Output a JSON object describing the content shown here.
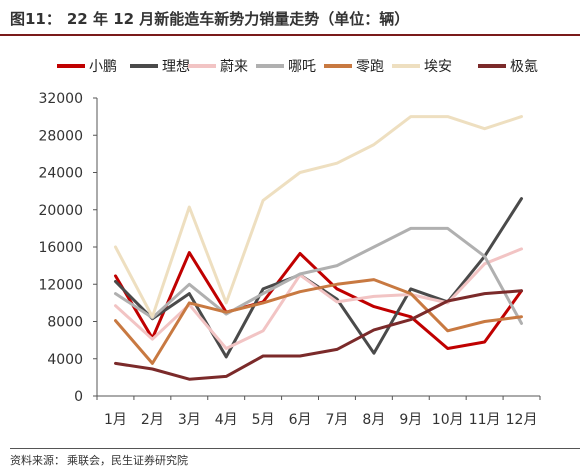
{
  "figure": {
    "label": "图11：",
    "title": "22 年 12 月新能造车新势力销量走势（单位：辆）"
  },
  "source": {
    "label": "资料来源：",
    "text": "乘联会，民生证券研究院"
  },
  "chart_data": {
    "type": "line",
    "title": "22 年 12 月新能造车新势力销量走势（单位：辆）",
    "xlabel": "",
    "ylabel": "",
    "ylim": [
      0,
      32000
    ],
    "yticks": [
      0,
      4000,
      8000,
      12000,
      16000,
      20000,
      24000,
      28000,
      32000
    ],
    "grid": false,
    "legend_position": "top",
    "categories": [
      "1月",
      "2月",
      "3月",
      "4月",
      "5月",
      "6月",
      "7月",
      "8月",
      "9月",
      "10月",
      "11月",
      "12月"
    ],
    "series": [
      {
        "name": "小鹏",
        "color": "#c00000",
        "values": [
          12900,
          6200,
          15400,
          9000,
          10100,
          15300,
          11500,
          9600,
          8500,
          5100,
          5800,
          11300
        ]
      },
      {
        "name": "理想",
        "color": "#4a4a4a",
        "values": [
          12300,
          8300,
          11000,
          4200,
          11500,
          13000,
          10400,
          4600,
          11500,
          10100,
          15000,
          21200
        ]
      },
      {
        "name": "蔚来",
        "color": "#f2c4c4",
        "values": [
          9700,
          6100,
          9800,
          5100,
          7000,
          13000,
          10100,
          10700,
          10900,
          10000,
          14200,
          15800
        ]
      },
      {
        "name": "哪吒",
        "color": "#b0b0b0",
        "values": [
          11000,
          8400,
          12000,
          8800,
          11000,
          13100,
          14000,
          16000,
          18000,
          18000,
          15000,
          7800
        ]
      },
      {
        "name": "零跑",
        "color": "#c87941",
        "values": [
          8100,
          3500,
          10000,
          9000,
          10000,
          11200,
          12000,
          12500,
          11000,
          7000,
          8000,
          8500
        ]
      },
      {
        "name": "埃安",
        "color": "#eedfc0",
        "values": [
          16000,
          8500,
          20300,
          10000,
          21000,
          24000,
          25000,
          27000,
          30000,
          30000,
          28700,
          30000
        ]
      },
      {
        "name": "极氪",
        "color": "#7b2a2a",
        "values": [
          3500,
          2900,
          1800,
          2100,
          4300,
          4300,
          5000,
          7100,
          8200,
          10200,
          11000,
          11300
        ]
      }
    ]
  }
}
